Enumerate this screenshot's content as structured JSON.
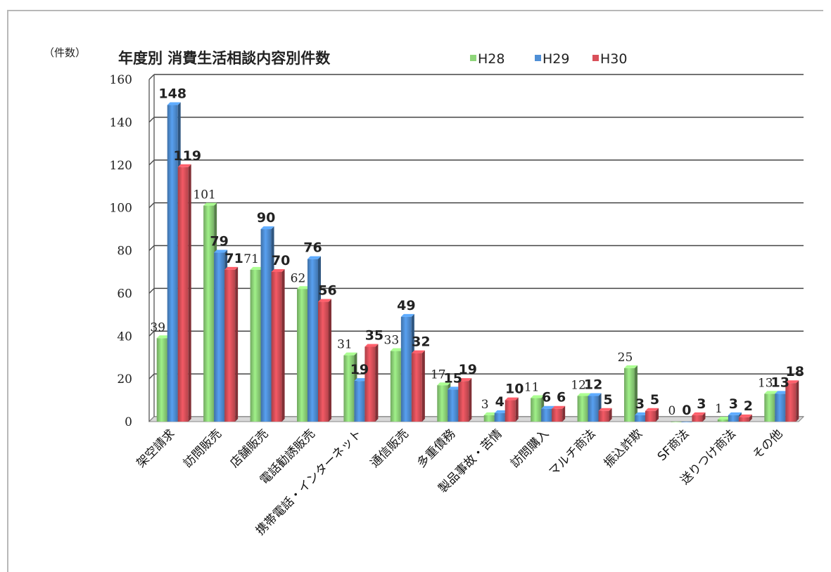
{
  "chart_data": {
    "type": "bar",
    "title": "年度別 消費生活相談内容別件数",
    "ylabel": "（件数）",
    "ylim": [
      0,
      160
    ],
    "yticks": [
      0,
      20,
      40,
      60,
      80,
      100,
      120,
      140,
      160
    ],
    "grid": true,
    "legend_position": "top",
    "categories": [
      "架空請求",
      "訪問販売",
      "店舗販売",
      "電話勧誘販売",
      "携帯電話・インターネット",
      "通信販売",
      "多重債務",
      "製品事故・苦情",
      "訪問購入",
      "マルチ商法",
      "振込詐欺",
      "SF商法",
      "送りつけ商法",
      "その他"
    ],
    "series": [
      {
        "name": "H28",
        "color": "#8fd67a",
        "values": [
          39,
          101,
          71,
          62,
          31,
          33,
          17,
          3,
          11,
          12,
          25,
          0,
          1,
          13
        ]
      },
      {
        "name": "H29",
        "color": "#4f8fd6",
        "values": [
          148,
          79,
          90,
          76,
          19,
          49,
          15,
          4,
          6,
          12,
          3,
          0,
          3,
          13
        ]
      },
      {
        "name": "H30",
        "color": "#d9505a",
        "values": [
          119,
          71,
          70,
          56,
          35,
          32,
          19,
          10,
          6,
          5,
          5,
          3,
          2,
          18
        ]
      }
    ]
  }
}
